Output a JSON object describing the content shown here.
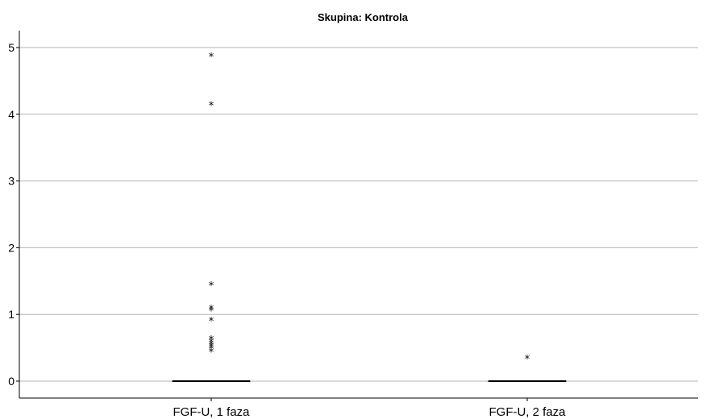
{
  "chart_data": {
    "type": "box",
    "title": "Skupina: Kontrola",
    "categories": [
      "FGF-U, 1 faza",
      "FGF-U, 2 faza"
    ],
    "ylim": [
      -0.25,
      5.25
    ],
    "yticks": [
      "0",
      "1",
      "2",
      "3",
      "4",
      "5"
    ],
    "grid": true,
    "series": [
      {
        "category": "FGF-U, 1 faza",
        "median": 0,
        "q1": 0,
        "q3": 0,
        "outliers": [
          4.88,
          4.15,
          1.45,
          1.1,
          1.07,
          0.92,
          0.64,
          0.6,
          0.56,
          0.53,
          0.5,
          0.45
        ]
      },
      {
        "category": "FGF-U, 2 faza",
        "median": 0,
        "q1": 0,
        "q3": 0,
        "outliers": [
          0.35
        ]
      }
    ],
    "outlier_marker": "*"
  }
}
